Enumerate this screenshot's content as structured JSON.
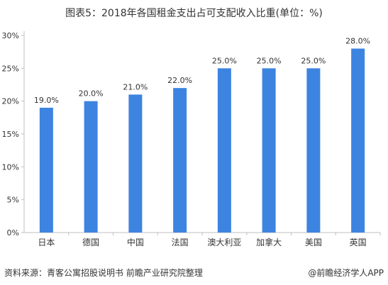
{
  "title": "图表5：2018年各国租金支出占可支配收入比重(单位：%)",
  "source": "资料来源：青客公寓招股说明书 前瞻产业研究院整理",
  "brand": "@前瞻经济学人APP",
  "colors": {
    "bar": "#3d84e0",
    "axis": "#bfbfbf",
    "text": "#333333"
  },
  "chart_data": {
    "type": "bar",
    "categories": [
      "日本",
      "德国",
      "中国",
      "法国",
      "澳大利亚",
      "加拿大",
      "美国",
      "英国"
    ],
    "values": [
      19.0,
      20.0,
      21.0,
      22.0,
      25.0,
      25.0,
      25.0,
      28.0
    ],
    "data_labels": [
      "19.0%",
      "20.0%",
      "21.0%",
      "22.0%",
      "25.0%",
      "25.0%",
      "25.0%",
      "28.0%"
    ],
    "ylim": [
      0,
      30
    ],
    "yticks": [
      0,
      5,
      10,
      15,
      20,
      25,
      30
    ],
    "ytick_labels": [
      "0%",
      "5%",
      "10%",
      "15%",
      "20%",
      "25%",
      "30%"
    ],
    "grid": false,
    "legend": "none"
  }
}
